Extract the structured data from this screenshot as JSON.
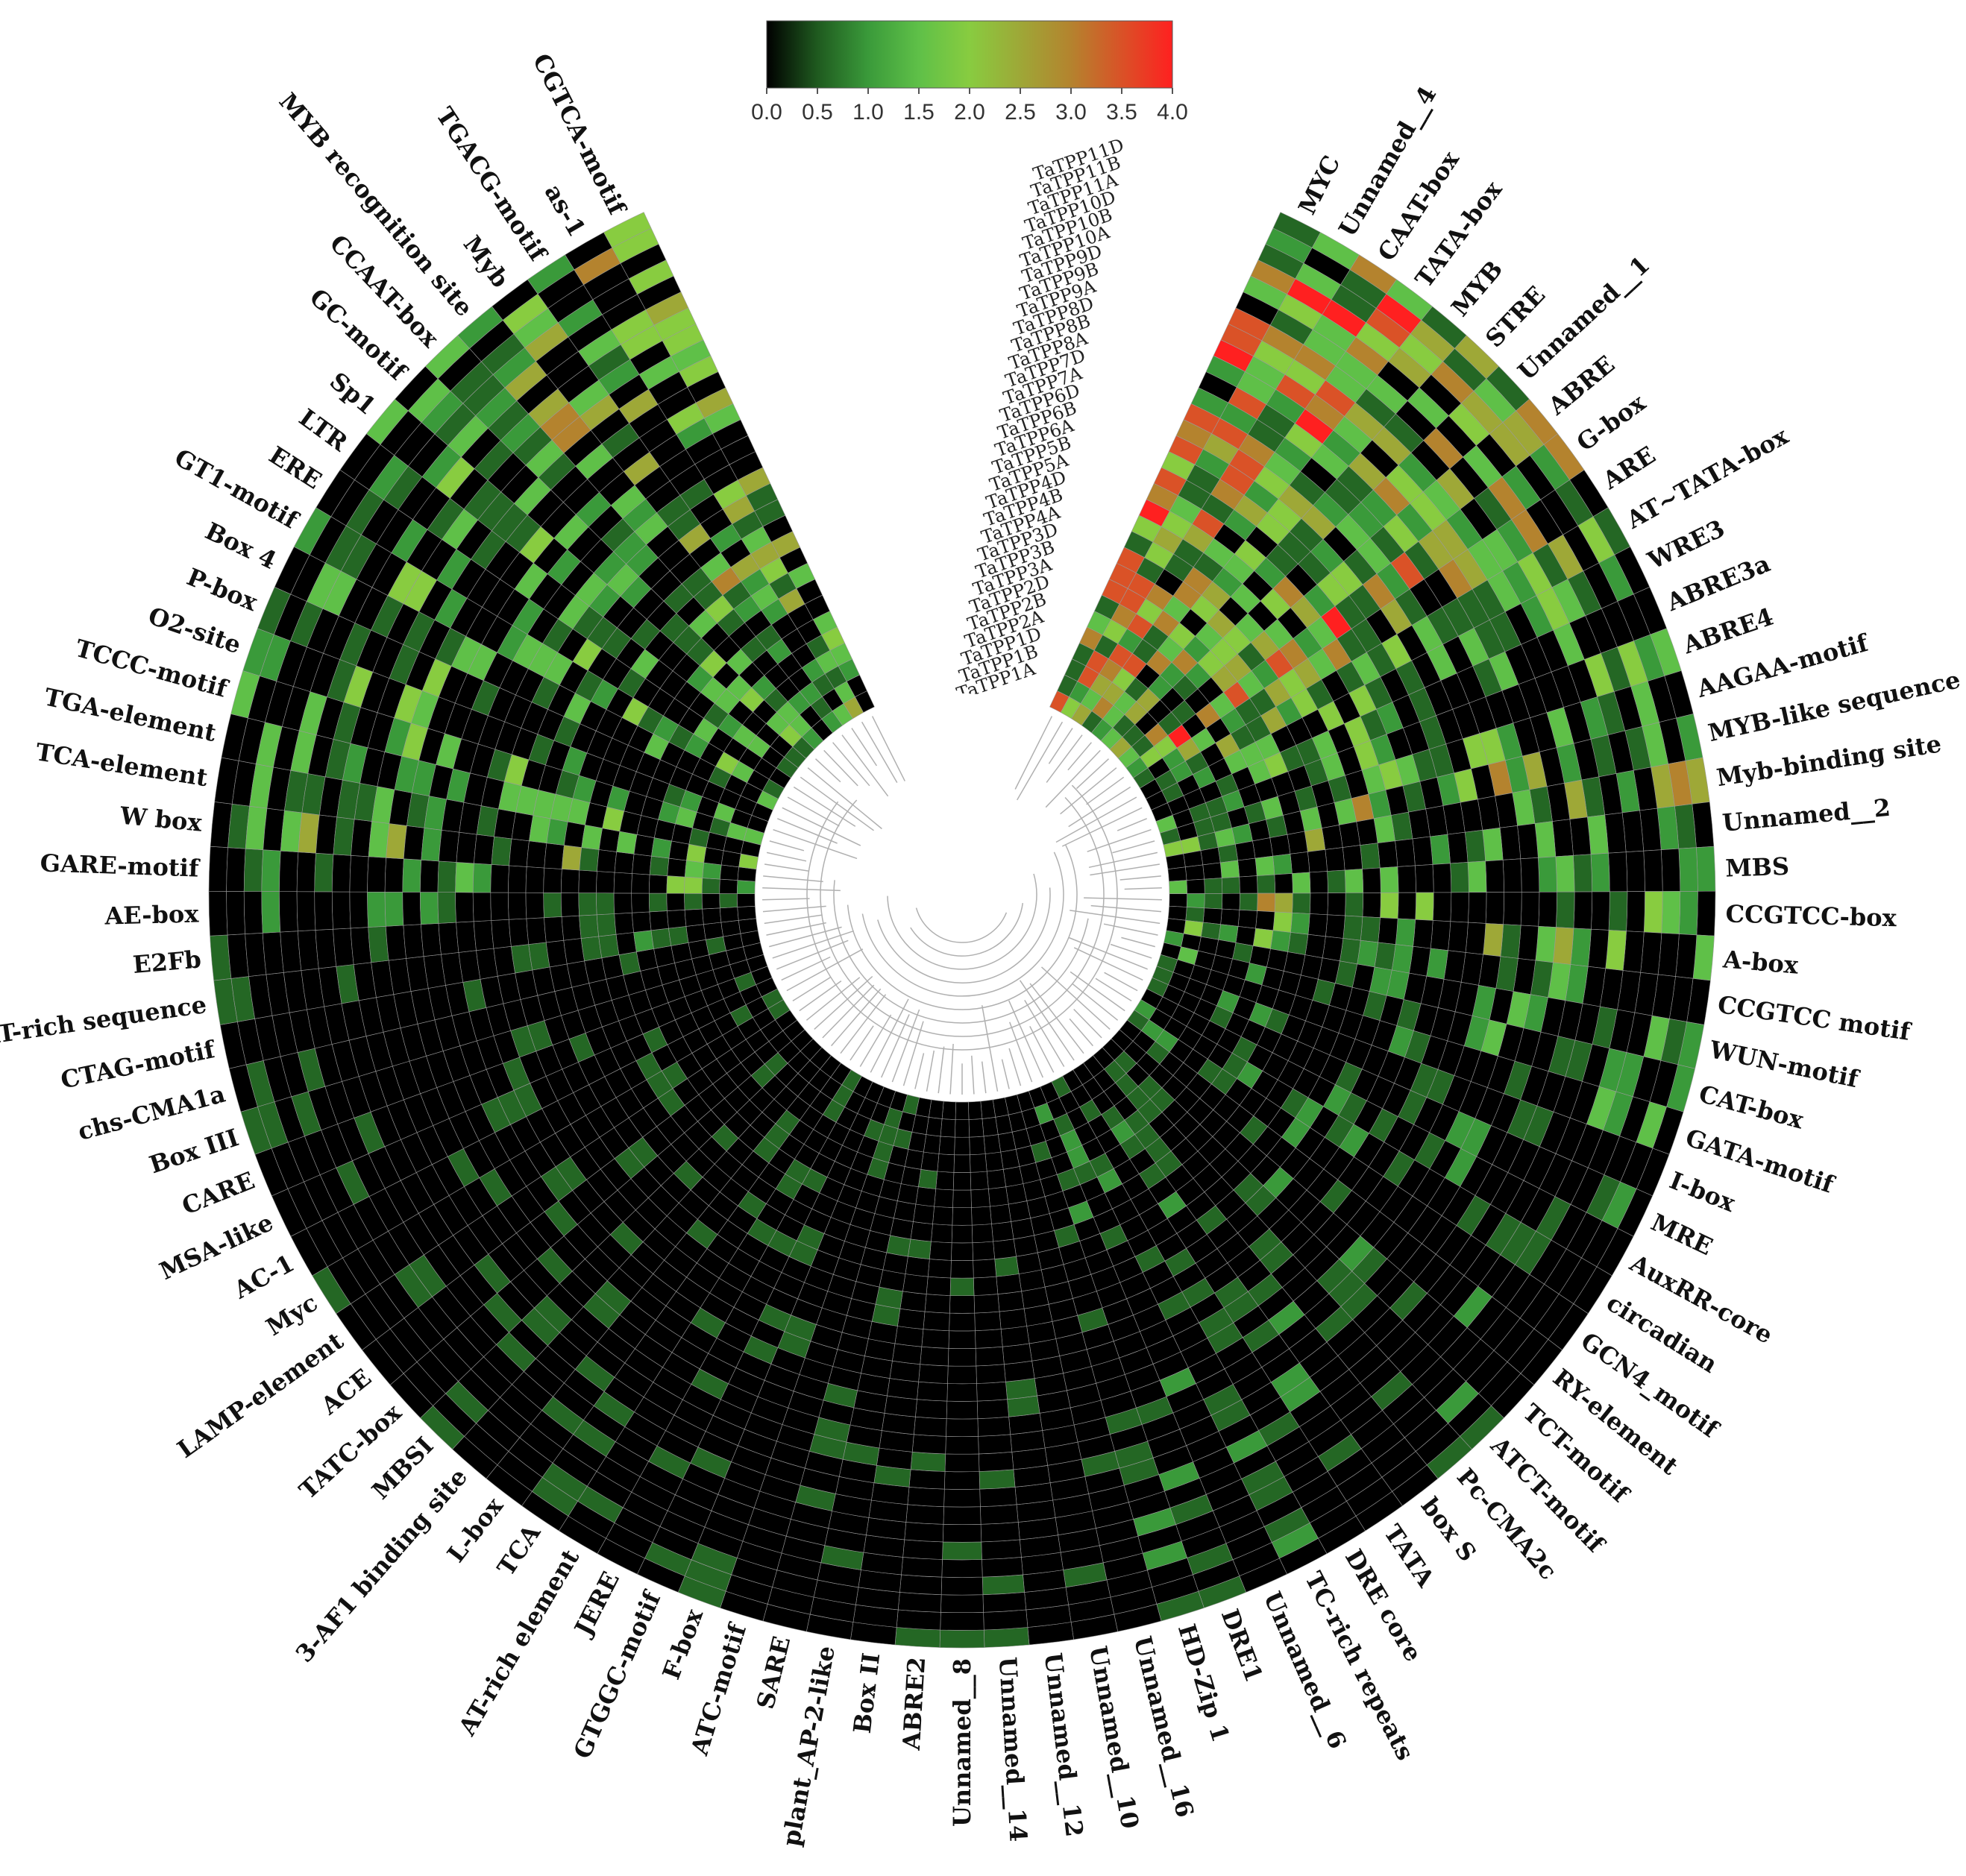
{
  "chart_data": {
    "type": "heatmap",
    "layout": "circular",
    "title": "",
    "color_scale": {
      "min": 0.0,
      "max": 4.0,
      "ticks": [
        "0.0",
        "0.5",
        "1.0",
        "1.5",
        "2.0",
        "2.5",
        "3.0",
        "3.5",
        "4.0"
      ],
      "colors": [
        "#000000",
        "#1f5a1f",
        "#3a9a3a",
        "#5fc048",
        "#88cc40",
        "#b4832e",
        "#ff2020"
      ],
      "color_stops": [
        0.0,
        0.5,
        1.0,
        1.5,
        2.0,
        3.0,
        4.0
      ]
    },
    "genes": [
      "TaTPP11D",
      "TaTPP11B",
      "TaTPP11A",
      "TaTPP10D",
      "TaTPP10B",
      "TaTPP10A",
      "TaTPP9D",
      "TaTPP9B",
      "TaTPP9A",
      "TaTPP8D",
      "TaTPP8B",
      "TaTPP8A",
      "TaTPP7D",
      "TaTPP7A",
      "TaTPP6D",
      "TaTPP6B",
      "TaTPP6A",
      "TaTPP5B",
      "TaTPP5A",
      "TaTPP4D",
      "TaTPP4B",
      "TaTPP4A",
      "TaTPP3D",
      "TaTPP3B",
      "TaTPP3A",
      "TaTPP2D",
      "TaTPP2B",
      "TaTPP2A",
      "TaTPP1D",
      "TaTPP1B",
      "TaTPP1A"
    ],
    "motifs": [
      "MYC",
      "Unnamed__4",
      "CAAT-box",
      "TATA-box",
      "MYB",
      "STRE",
      "Unnamed__1",
      "ABRE",
      "G-box",
      "ARE",
      "AT~TATA-box",
      "WRE3",
      "ABRE3a",
      "ABRE4",
      "AAGAA-motif",
      "MYB-like sequence",
      "Myb-binding site",
      "Unnamed__2",
      "MBS",
      "CCGTCC-box",
      "A-box",
      "CCGTCC motif",
      "WUN-motif",
      "CAT-box",
      "GATA-motif",
      "I-box",
      "MRE",
      "AuxRR-core",
      "circadian",
      "GCN4_motif",
      "RY-element",
      "TCT-motif",
      "ATCT-motif",
      "Pc-CMA2c",
      "box S",
      "TATA",
      "DRE core",
      "TC-rich repeats",
      "Unnamed__6",
      "DRE1",
      "HD-Zip 1",
      "Unnamed__16",
      "Unnamed__10",
      "Unnamed__12",
      "Unnamed__14",
      "Unnamed__8",
      "ABRE2",
      "Box II",
      "plant_AP-2-like",
      "SARE",
      "ATC-motif",
      "F-box",
      "GTGGC-motif",
      "JERE",
      "AT-rich element",
      "TCA",
      "L-box",
      "3-AF1 binding site",
      "MBSI",
      "TATC-box",
      "ACE",
      "LAMP-element",
      "Myc",
      "AC-1",
      "MSA-like",
      "CARE",
      "Box III",
      "chs-CMA1a",
      "CTAG-motif",
      "AT-rich sequence",
      "E2Fb",
      "AE-box",
      "GARE-motif",
      "W box",
      "TCA-element",
      "TGA-element",
      "TCCC-motif",
      "O2-site",
      "P-box",
      "Box 4",
      "GT1-motif",
      "ERE",
      "LTR",
      "Sp1",
      "GC-motif",
      "CCAAT-box",
      "MYB recognition site",
      "Myb",
      "TGACG-motif",
      "as-1",
      "CGTCA-motif"
    ],
    "row_max": [
      4,
      4,
      4,
      4,
      3,
      3,
      3,
      3,
      4,
      3,
      3,
      2,
      2,
      2,
      2,
      3,
      3,
      2,
      2,
      3,
      3,
      2,
      2,
      2,
      2,
      1,
      1,
      1,
      1,
      1,
      1,
      1,
      1,
      1,
      1,
      1,
      1,
      1,
      1,
      1,
      1,
      1,
      0,
      0,
      0,
      0,
      0,
      0,
      0,
      0,
      0,
      0,
      0,
      0,
      0,
      0,
      0,
      0,
      0,
      0,
      0,
      0,
      0,
      0,
      0,
      0,
      0,
      0,
      0,
      1,
      1,
      1,
      2,
      3,
      2,
      2,
      2,
      2,
      2,
      2,
      2,
      2,
      2,
      2,
      2,
      2,
      3,
      3,
      3,
      3,
      3
    ],
    "row_density": [
      0.95,
      0.95,
      0.95,
      0.9,
      0.85,
      0.8,
      0.8,
      0.8,
      0.9,
      0.7,
      0.65,
      0.6,
      0.55,
      0.5,
      0.55,
      0.6,
      0.55,
      0.45,
      0.4,
      0.45,
      0.4,
      0.4,
      0.4,
      0.35,
      0.35,
      0.3,
      0.3,
      0.3,
      0.3,
      0.3,
      0.25,
      0.25,
      0.25,
      0.3,
      0.25,
      0.3,
      0.25,
      0.25,
      0.2,
      0.25,
      0.25,
      0.15,
      0.12,
      0.12,
      0.12,
      0.12,
      0.1,
      0.12,
      0.1,
      0.1,
      0.1,
      0.12,
      0.15,
      0.15,
      0.15,
      0.15,
      0.15,
      0.15,
      0.15,
      0.15,
      0.15,
      0.15,
      0.15,
      0.15,
      0.15,
      0.15,
      0.15,
      0.15,
      0.15,
      0.2,
      0.2,
      0.3,
      0.35,
      0.4,
      0.45,
      0.45,
      0.45,
      0.45,
      0.45,
      0.45,
      0.5,
      0.5,
      0.55,
      0.55,
      0.55,
      0.6,
      0.6,
      0.6,
      0.65,
      0.65,
      0.7
    ]
  }
}
